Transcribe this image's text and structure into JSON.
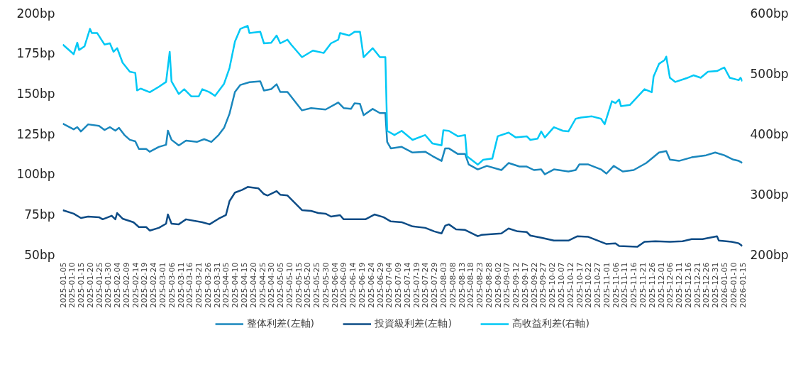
{
  "chart_data": {
    "type": "line",
    "legend": "bottom",
    "xlim": [
      "2025-01-05",
      "2026-01-15"
    ],
    "xticks": [
      "2025-01-05",
      "2025-01-10",
      "2025-01-15",
      "2025-01-20",
      "2025-01-25",
      "2025-01-30",
      "2025-02-04",
      "2025-02-09",
      "2025-02-14",
      "2025-02-19",
      "2025-02-24",
      "2025-03-01",
      "2025-03-06",
      "2025-03-11",
      "2025-03-16",
      "2025-03-21",
      "2025-03-26",
      "2025-03-31",
      "2025-04-05",
      "2025-04-10",
      "2025-04-15",
      "2025-04-20",
      "2025-04-25",
      "2025-04-30",
      "2025-05-05",
      "2025-05-10",
      "2025-05-15",
      "2025-05-20",
      "2025-05-25",
      "2025-05-30",
      "2025-06-04",
      "2025-06-09",
      "2025-06-14",
      "2025-06-19",
      "2025-06-24",
      "2025-06-29",
      "2025-07-04",
      "2025-07-09",
      "2025-07-14",
      "2025-07-19",
      "2025-07-24",
      "2025-07-29",
      "2025-08-03",
      "2025-08-08",
      "2025-08-13",
      "2025-08-18",
      "2025-08-23",
      "2025-08-28",
      "2025-09-02",
      "2025-09-07",
      "2025-09-12",
      "2025-09-17",
      "2025-09-22",
      "2025-09-27",
      "2025-10-02",
      "2025-10-07",
      "2025-10-12",
      "2025-10-17",
      "2025-10-22",
      "2025-10-27",
      "2025-11-01",
      "2025-11-06",
      "2025-11-11",
      "2025-11-16",
      "2025-11-21",
      "2025-11-26",
      "2025-12-01",
      "2025-12-06",
      "2025-12-11",
      "2025-12-16",
      "2025-12-21",
      "2025-12-26",
      "2025-12-31",
      "2026-01-05",
      "2026-01-10",
      "2026-01-15"
    ],
    "ylim": [
      50,
      200
    ],
    "yticks": [
      {
        "value": 50,
        "label": "50bp"
      },
      {
        "value": 75,
        "label": "75bp"
      },
      {
        "value": 100,
        "label": "100bp"
      },
      {
        "value": 125,
        "label": "125bp"
      },
      {
        "value": 150,
        "label": "150bp"
      },
      {
        "value": 175,
        "label": "175bp"
      },
      {
        "value": 200,
        "label": "200bp"
      }
    ],
    "y2lim": [
      200,
      600
    ],
    "y2ticks": [
      {
        "value": 200,
        "label": "200bp"
      },
      {
        "value": 300,
        "label": "300bp"
      },
      {
        "value": 400,
        "label": "400bp"
      },
      {
        "value": 500,
        "label": "500bp"
      },
      {
        "value": 600,
        "label": "600bp"
      }
    ],
    "series": [
      {
        "name": "整体利差(左軸)",
        "color": "#1a87bd",
        "x": [
          "2025-01-05",
          "2025-01-11",
          "2025-01-13",
          "2025-01-15",
          "2025-01-19",
          "2025-01-25",
          "2025-01-28",
          "2025-01-31",
          "2025-02-03",
          "2025-02-05",
          "2025-02-08",
          "2025-02-11",
          "2025-02-14",
          "2025-02-16",
          "2025-02-20",
          "2025-02-22",
          "2025-02-27",
          "2025-03-03",
          "2025-03-04",
          "2025-03-06",
          "2025-03-10",
          "2025-03-14",
          "2025-03-20",
          "2025-03-24",
          "2025-03-28",
          "2025-04-01",
          "2025-04-04",
          "2025-04-07",
          "2025-04-10",
          "2025-04-13",
          "2025-04-18",
          "2025-04-24",
          "2025-04-26",
          "2025-04-30",
          "2025-05-03",
          "2025-05-05",
          "2025-05-09",
          "2025-05-17",
          "2025-05-22",
          "2025-05-30",
          "2025-06-06",
          "2025-06-09",
          "2025-06-13",
          "2025-06-15",
          "2025-06-18",
          "2025-06-20",
          "2025-06-25",
          "2025-06-29",
          "2025-07-02",
          "2025-07-03",
          "2025-07-05",
          "2025-07-11",
          "2025-07-17",
          "2025-07-24",
          "2025-07-28",
          "2025-08-02",
          "2025-08-04",
          "2025-08-06",
          "2025-08-11",
          "2025-08-15",
          "2025-08-17",
          "2025-08-22",
          "2025-08-27",
          "2025-09-04",
          "2025-09-08",
          "2025-09-14",
          "2025-09-18",
          "2025-09-22",
          "2025-09-26",
          "2025-09-28",
          "2025-10-03",
          "2025-10-11",
          "2025-10-15",
          "2025-10-17",
          "2025-10-22",
          "2025-10-29",
          "2025-11-01",
          "2025-11-05",
          "2025-11-10",
          "2025-11-16",
          "2025-11-23",
          "2025-11-30",
          "2025-12-04",
          "2025-12-06",
          "2025-12-11",
          "2025-12-18",
          "2025-12-26",
          "2025-12-31",
          "2026-01-05",
          "2026-01-10",
          "2026-01-13",
          "2026-01-15"
        ],
        "values": [
          131.3,
          127.8,
          129.2,
          126.5,
          130.9,
          130.0,
          127.4,
          129.2,
          127.0,
          128.7,
          124.3,
          121.3,
          120.4,
          115.6,
          115.6,
          113.9,
          116.9,
          118.2,
          127.0,
          121.3,
          117.8,
          120.8,
          120.0,
          121.7,
          120.0,
          124.3,
          128.7,
          137.5,
          151.0,
          155.4,
          157.1,
          157.6,
          151.9,
          152.8,
          155.8,
          151.0,
          151.0,
          139.6,
          141.0,
          140.1,
          144.5,
          141.0,
          140.5,
          144.0,
          143.6,
          136.6,
          140.5,
          137.9,
          137.9,
          120.0,
          116.0,
          116.9,
          113.4,
          113.9,
          111.2,
          108.2,
          116.0,
          116.0,
          112.5,
          112.5,
          106.0,
          102.9,
          105.1,
          102.5,
          106.9,
          104.7,
          104.7,
          102.5,
          102.9,
          99.9,
          102.9,
          101.6,
          102.5,
          106.0,
          106.0,
          102.9,
          100.3,
          105.1,
          101.6,
          102.5,
          106.9,
          113.4,
          114.3,
          109.0,
          108.2,
          110.4,
          111.7,
          113.4,
          111.7,
          109.0,
          108.2,
          106.9
        ]
      },
      {
        "name": "投資級利差(左軸)",
        "color": "#0d4c86",
        "x": [
          "2025-01-05",
          "2025-01-11",
          "2025-01-15",
          "2025-01-19",
          "2025-01-25",
          "2025-01-27",
          "2025-02-01",
          "2025-02-03",
          "2025-02-04",
          "2025-02-07",
          "2025-02-13",
          "2025-02-16",
          "2025-02-20",
          "2025-02-22",
          "2025-02-27",
          "2025-03-03",
          "2025-03-04",
          "2025-03-06",
          "2025-03-10",
          "2025-03-14",
          "2025-03-23",
          "2025-03-27",
          "2025-04-01",
          "2025-04-05",
          "2025-04-07",
          "2025-04-10",
          "2025-04-14",
          "2025-04-17",
          "2025-04-23",
          "2025-04-26",
          "2025-04-28",
          "2025-05-03",
          "2025-05-05",
          "2025-05-09",
          "2025-05-17",
          "2025-05-22",
          "2025-05-26",
          "2025-05-30",
          "2025-06-02",
          "2025-06-07",
          "2025-06-09",
          "2025-06-15",
          "2025-06-21",
          "2025-06-26",
          "2025-07-01",
          "2025-07-05",
          "2025-07-11",
          "2025-07-17",
          "2025-07-24",
          "2025-07-29",
          "2025-08-02",
          "2025-08-04",
          "2025-08-06",
          "2025-08-10",
          "2025-08-15",
          "2025-08-22",
          "2025-08-24",
          "2025-09-04",
          "2025-09-08",
          "2025-09-13",
          "2025-09-18",
          "2025-09-20",
          "2025-09-26",
          "2025-10-03",
          "2025-10-11",
          "2025-10-16",
          "2025-10-22",
          "2025-11-01",
          "2025-11-06",
          "2025-11-08",
          "2025-11-18",
          "2025-11-22",
          "2025-11-28",
          "2025-12-06",
          "2025-12-13",
          "2025-12-18",
          "2025-12-24",
          "2026-01-01",
          "2026-01-02",
          "2026-01-09",
          "2026-01-13",
          "2026-01-15"
        ],
        "values": [
          77.6,
          75.4,
          72.7,
          73.6,
          73.2,
          71.9,
          74.1,
          71.9,
          75.8,
          72.3,
          70.1,
          67.1,
          67.1,
          64.9,
          66.6,
          69.2,
          74.9,
          69.2,
          68.8,
          71.9,
          70.1,
          68.8,
          72.3,
          74.5,
          83.2,
          88.5,
          90.2,
          92.0,
          91.1,
          87.6,
          86.7,
          89.4,
          87.2,
          86.7,
          77.6,
          77.1,
          75.8,
          75.4,
          73.6,
          74.5,
          71.9,
          71.9,
          71.9,
          74.9,
          73.2,
          70.6,
          70.1,
          67.5,
          66.6,
          64.4,
          63.1,
          67.9,
          68.8,
          65.7,
          65.3,
          61.4,
          62.2,
          63.1,
          66.2,
          64.4,
          64.0,
          61.8,
          60.5,
          58.7,
          58.7,
          61.4,
          61.0,
          56.6,
          57.0,
          55.3,
          54.8,
          57.9,
          58.3,
          57.9,
          58.3,
          59.6,
          59.6,
          61.4,
          58.7,
          57.9,
          57.0,
          55.3
        ]
      },
      {
        "name": "高收益利差(右軸)",
        "color": "#00c8f5",
        "axis": "y2",
        "x": [
          "2025-01-05",
          "2025-01-11",
          "2025-01-13",
          "2025-01-14",
          "2025-01-17",
          "2025-01-20",
          "2025-01-21",
          "2025-01-24",
          "2025-01-28",
          "2025-01-31",
          "2025-02-02",
          "2025-02-04",
          "2025-02-07",
          "2025-02-11",
          "2025-02-14",
          "2025-02-15",
          "2025-02-17",
          "2025-02-22",
          "2025-02-27",
          "2025-03-03",
          "2025-03-05",
          "2025-03-06",
          "2025-03-10",
          "2025-03-13",
          "2025-03-17",
          "2025-03-21",
          "2025-03-23",
          "2025-03-27",
          "2025-03-30",
          "2025-04-04",
          "2025-04-07",
          "2025-04-10",
          "2025-04-13",
          "2025-04-17",
          "2025-04-18",
          "2025-04-24",
          "2025-04-26",
          "2025-04-30",
          "2025-05-03",
          "2025-05-05",
          "2025-05-09",
          "2025-05-11",
          "2025-05-17",
          "2025-05-23",
          "2025-05-29",
          "2025-06-02",
          "2025-06-06",
          "2025-06-07",
          "2025-06-12",
          "2025-06-15",
          "2025-06-18",
          "2025-06-20",
          "2025-06-25",
          "2025-06-29",
          "2025-07-02",
          "2025-07-03",
          "2025-07-07",
          "2025-07-11",
          "2025-07-17",
          "2025-07-24",
          "2025-07-28",
          "2025-08-02",
          "2025-08-03",
          "2025-08-06",
          "2025-08-11",
          "2025-08-15",
          "2025-08-16",
          "2025-08-22",
          "2025-08-25",
          "2025-08-30",
          "2025-09-02",
          "2025-09-08",
          "2025-09-12",
          "2025-09-18",
          "2025-09-20",
          "2025-09-24",
          "2025-09-26",
          "2025-09-28",
          "2025-10-03",
          "2025-10-08",
          "2025-10-11",
          "2025-10-15",
          "2025-10-18",
          "2025-10-24",
          "2025-10-29",
          "2025-10-31",
          "2025-11-04",
          "2025-11-06",
          "2025-11-08",
          "2025-11-09",
          "2025-11-14",
          "2025-11-22",
          "2025-11-26",
          "2025-11-27",
          "2025-11-30",
          "2025-12-03",
          "2025-12-04",
          "2025-12-06",
          "2025-12-09",
          "2025-12-15",
          "2025-12-19",
          "2025-12-23",
          "2025-12-27",
          "2026-01-01",
          "2026-01-05",
          "2026-01-08",
          "2026-01-13",
          "2026-01-14",
          "2026-01-15"
        ],
        "values": [
          548,
          532,
          551,
          539,
          545,
          574,
          567,
          567,
          548,
          550,
          536,
          542,
          518,
          503,
          501,
          472,
          475,
          469,
          478,
          486,
          536,
          487,
          466,
          474,
          462,
          462,
          474,
          469,
          463,
          483,
          509,
          553,
          574,
          579,
          567,
          569,
          550,
          551,
          563,
          550,
          556,
          548,
          527,
          538,
          534,
          550,
          556,
          567,
          563,
          569,
          569,
          527,
          542,
          527,
          527,
          405,
          398,
          405,
          390,
          398,
          384,
          381,
          406,
          405,
          396,
          398,
          363,
          349,
          357,
          359,
          396,
          402,
          394,
          396,
          390,
          392,
          404,
          394,
          411,
          405,
          404,
          425,
          427,
          429,
          425,
          416,
          454,
          451,
          457,
          446,
          448,
          474,
          469,
          495,
          516,
          522,
          528,
          493,
          486,
          492,
          497,
          493,
          503,
          504,
          510,
          493,
          489,
          493,
          487
        ]
      }
    ]
  }
}
